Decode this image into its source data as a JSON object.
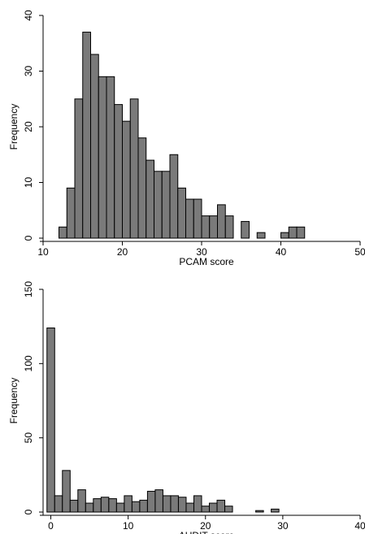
{
  "chart_data": [
    {
      "type": "bar",
      "subtype": "histogram",
      "xlabel": "PCAM score",
      "ylabel": "Frequency",
      "xlim": [
        10,
        50
      ],
      "ylim": [
        0,
        40
      ],
      "xticks": [
        "10",
        "20",
        "30",
        "40",
        "50"
      ],
      "yticks": [
        "0",
        "10",
        "20",
        "30",
        "40"
      ],
      "bin_width": 1,
      "bar_color": "#7a7a7a",
      "edge_color": "#000000",
      "grid": false,
      "bins": [
        {
          "x": 12.5,
          "y": 2
        },
        {
          "x": 13.5,
          "y": 9
        },
        {
          "x": 14.5,
          "y": 25
        },
        {
          "x": 15.5,
          "y": 37
        },
        {
          "x": 16.5,
          "y": 33
        },
        {
          "x": 17.5,
          "y": 29
        },
        {
          "x": 18.5,
          "y": 29
        },
        {
          "x": 19.5,
          "y": 24
        },
        {
          "x": 20.5,
          "y": 21
        },
        {
          "x": 21.5,
          "y": 25
        },
        {
          "x": 22.5,
          "y": 18
        },
        {
          "x": 23.5,
          "y": 14
        },
        {
          "x": 24.5,
          "y": 12
        },
        {
          "x": 25.5,
          "y": 12
        },
        {
          "x": 26.5,
          "y": 15
        },
        {
          "x": 27.5,
          "y": 9
        },
        {
          "x": 28.5,
          "y": 7
        },
        {
          "x": 29.5,
          "y": 7
        },
        {
          "x": 30.5,
          "y": 4
        },
        {
          "x": 31.5,
          "y": 4
        },
        {
          "x": 32.5,
          "y": 6
        },
        {
          "x": 33.5,
          "y": 4
        },
        {
          "x": 35.5,
          "y": 3
        },
        {
          "x": 37.5,
          "y": 1
        },
        {
          "x": 40.5,
          "y": 1
        },
        {
          "x": 41.5,
          "y": 2
        },
        {
          "x": 42.5,
          "y": 2
        }
      ]
    },
    {
      "type": "bar",
      "subtype": "histogram",
      "xlabel": "AUDIT score",
      "ylabel": "Frequency",
      "xlim": [
        -1,
        40
      ],
      "ylim": [
        0,
        150
      ],
      "xticks": [
        "0",
        "10",
        "20",
        "30",
        "40"
      ],
      "yticks": [
        "0",
        "50",
        "100",
        "150"
      ],
      "bin_width": 1,
      "bar_color": "#7a7a7a",
      "edge_color": "#000000",
      "grid": false,
      "bins": [
        {
          "x": 0,
          "y": 124
        },
        {
          "x": 1,
          "y": 11
        },
        {
          "x": 2,
          "y": 28
        },
        {
          "x": 3,
          "y": 8
        },
        {
          "x": 4,
          "y": 15
        },
        {
          "x": 5,
          "y": 6
        },
        {
          "x": 6,
          "y": 9
        },
        {
          "x": 7,
          "y": 10
        },
        {
          "x": 8,
          "y": 9
        },
        {
          "x": 9,
          "y": 6
        },
        {
          "x": 10,
          "y": 11
        },
        {
          "x": 11,
          "y": 7
        },
        {
          "x": 12,
          "y": 8
        },
        {
          "x": 13,
          "y": 14
        },
        {
          "x": 14,
          "y": 15
        },
        {
          "x": 15,
          "y": 11
        },
        {
          "x": 16,
          "y": 11
        },
        {
          "x": 17,
          "y": 10
        },
        {
          "x": 18,
          "y": 6
        },
        {
          "x": 19,
          "y": 11
        },
        {
          "x": 20,
          "y": 4
        },
        {
          "x": 21,
          "y": 6
        },
        {
          "x": 22,
          "y": 8
        },
        {
          "x": 23,
          "y": 4
        },
        {
          "x": 27,
          "y": 1
        },
        {
          "x": 29,
          "y": 2
        }
      ]
    }
  ]
}
